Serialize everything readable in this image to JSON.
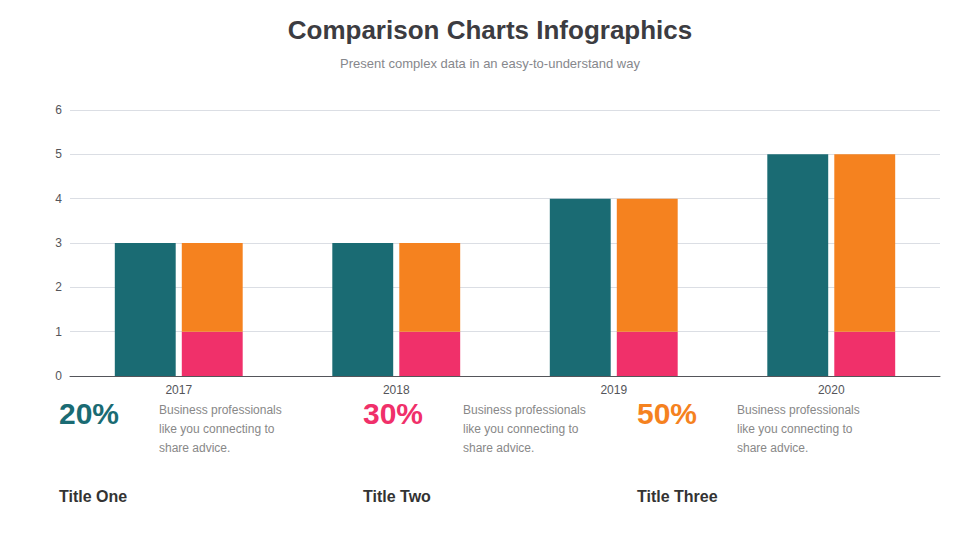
{
  "chart_data": {
    "type": "bar",
    "title": "Comparison Charts Infographics",
    "subtitle": "Present complex data in an easy-to-understand way",
    "categories": [
      "2017",
      "2018",
      "2019",
      "2020"
    ],
    "series": [
      {
        "color": "#1a6b73",
        "values": [
          3,
          3,
          4,
          5
        ]
      },
      {
        "color": "#f0306a",
        "values": [
          1,
          1,
          1,
          1
        ],
        "stacked": true
      },
      {
        "color": "#f5821f",
        "values": [
          2,
          2,
          3,
          4
        ],
        "stacked": true
      }
    ],
    "ylim": [
      0,
      6
    ],
    "yticks": [
      0,
      1,
      2,
      3,
      4,
      5,
      6
    ],
    "grid": true,
    "annotations": [
      {
        "percent": "20%",
        "color": "#1a6b73",
        "title": "Title One",
        "text": "Business professionals\nlike you connecting to\nshare advice."
      },
      {
        "percent": "30%",
        "color": "#f0306a",
        "title": "Title Two",
        "text": "Business professionals\nlike you connecting to\nshare advice."
      },
      {
        "percent": "50%",
        "color": "#f5821f",
        "title": "Title Three",
        "text": "Business professionals\nlike you connecting to\nshare advice."
      }
    ]
  }
}
